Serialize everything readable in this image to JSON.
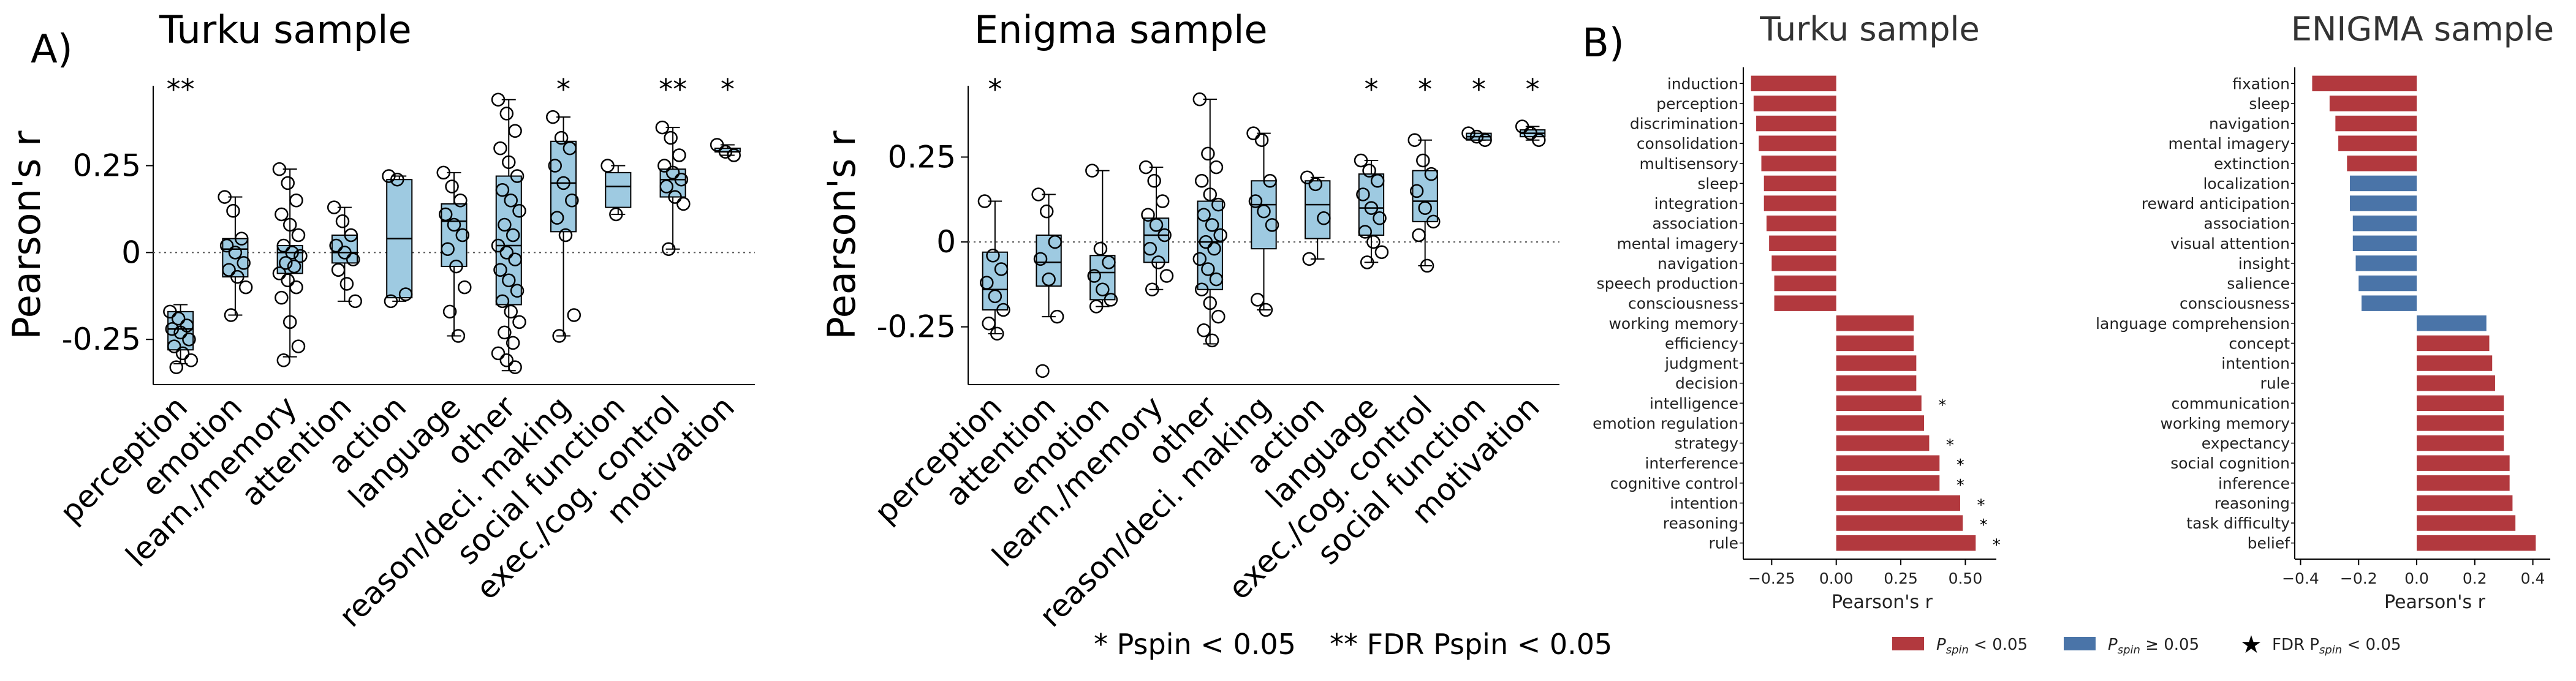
{
  "colors": {
    "box_fill": "#9ecae1",
    "box_edge": "#000000",
    "bar_sig": "#b2393e",
    "bar_nonsig": "#4a74a8"
  },
  "panel_a": {
    "letter": "A)",
    "y_label": "Pearson's r",
    "note_single": "* Pspin < 0.05",
    "note_double": "** FDR Pspin < 0.05"
  },
  "panel_b": {
    "letter": "B)",
    "x_label": "Pearson's r",
    "legend": {
      "sig": "P",
      "sig_sub": "spin",
      "sig_tail": " < 0.05",
      "nonsig": "P",
      "nonsig_sub": "spin",
      "nonsig_tail": " ≥ 0.05",
      "fdr": "FDR P",
      "fdr_sub": "spin",
      "fdr_tail": " < 0.05"
    }
  },
  "chart_data": [
    {
      "type": "box",
      "title": "Turku sample",
      "ylabel": "Pearson's r",
      "ylim": [
        -0.38,
        0.48
      ],
      "yticks": [
        -0.25,
        0,
        0.25
      ],
      "ytick_labels": [
        "-0.25",
        "0",
        "0.25"
      ],
      "reference_line": 0,
      "categories": [
        "perception",
        "emotion",
        "learn./memory",
        "attention",
        "action",
        "language",
        "other",
        "reason/deci. making",
        "social function",
        "exec./cog. control",
        "motivation"
      ],
      "significance": [
        "**",
        "",
        "",
        "",
        "",
        "",
        "",
        "*",
        "",
        "**",
        "*"
      ],
      "boxes": [
        {
          "q1": -0.28,
          "median": -0.22,
          "q3": -0.17,
          "whisker_low": -0.32,
          "whisker_high": -0.15,
          "points": [
            -0.17,
            -0.19,
            -0.21,
            -0.22,
            -0.23,
            -0.25,
            -0.27,
            -0.29,
            -0.31,
            -0.33
          ]
        },
        {
          "q1": -0.07,
          "median": 0.01,
          "q3": 0.04,
          "whisker_low": -0.18,
          "whisker_high": 0.16,
          "points": [
            0.16,
            0.12,
            0.04,
            0.02,
            0.0,
            -0.03,
            -0.05,
            -0.07,
            -0.1,
            -0.18
          ]
        },
        {
          "q1": -0.06,
          "median": 0.0,
          "q3": 0.02,
          "whisker_low": -0.3,
          "whisker_high": 0.24,
          "points": [
            0.24,
            0.2,
            0.15,
            0.11,
            0.08,
            0.05,
            0.02,
            0.0,
            -0.01,
            -0.03,
            -0.04,
            -0.06,
            -0.08,
            -0.1,
            -0.13,
            -0.2,
            -0.27,
            -0.31
          ]
        },
        {
          "q1": -0.03,
          "median": 0.0,
          "q3": 0.05,
          "whisker_low": -0.14,
          "whisker_high": 0.13,
          "points": [
            0.13,
            0.09,
            0.05,
            0.02,
            0.0,
            -0.02,
            -0.05,
            -0.09,
            -0.14
          ]
        },
        {
          "q1": -0.13,
          "median": 0.04,
          "q3": 0.21,
          "whisker_low": -0.14,
          "whisker_high": 0.22,
          "points": [
            0.22,
            0.21,
            -0.12,
            -0.14
          ]
        },
        {
          "q1": -0.04,
          "median": 0.09,
          "q3": 0.14,
          "whisker_low": -0.24,
          "whisker_high": 0.23,
          "points": [
            0.23,
            0.19,
            0.15,
            0.11,
            0.08,
            0.05,
            0.01,
            -0.04,
            -0.1,
            -0.17,
            -0.24
          ]
        },
        {
          "q1": -0.15,
          "median": 0.02,
          "q3": 0.22,
          "whisker_low": -0.34,
          "whisker_high": 0.44,
          "points": [
            0.44,
            0.4,
            0.35,
            0.3,
            0.26,
            0.22,
            0.18,
            0.15,
            0.12,
            0.08,
            0.05,
            0.02,
            0.0,
            -0.02,
            -0.05,
            -0.08,
            -0.11,
            -0.14,
            -0.17,
            -0.2,
            -0.23,
            -0.26,
            -0.29,
            -0.31,
            -0.33
          ]
        },
        {
          "q1": 0.06,
          "median": 0.2,
          "q3": 0.32,
          "whisker_low": -0.24,
          "whisker_high": 0.39,
          "points": [
            0.39,
            0.33,
            0.3,
            0.25,
            0.2,
            0.15,
            0.1,
            0.05,
            -0.18,
            -0.24
          ]
        },
        {
          "q1": 0.13,
          "median": 0.19,
          "q3": 0.23,
          "whisker_low": 0.11,
          "whisker_high": 0.25,
          "points": [
            0.25,
            0.11
          ]
        },
        {
          "q1": 0.16,
          "median": 0.21,
          "q3": 0.24,
          "whisker_low": 0.01,
          "whisker_high": 0.36,
          "points": [
            0.36,
            0.33,
            0.28,
            0.25,
            0.23,
            0.21,
            0.19,
            0.16,
            0.14,
            0.01
          ]
        },
        {
          "q1": 0.29,
          "median": 0.29,
          "q3": 0.3,
          "whisker_low": 0.28,
          "whisker_high": 0.31,
          "points": [
            0.31,
            0.29,
            0.28
          ]
        }
      ]
    },
    {
      "type": "box",
      "title": "Enigma sample",
      "ylabel": "Pearson's r",
      "ylim": [
        -0.42,
        0.46
      ],
      "yticks": [
        -0.25,
        0,
        0.25
      ],
      "ytick_labels": [
        "-0.25",
        "0",
        "0.25"
      ],
      "reference_line": 0,
      "categories": [
        "perception",
        "attention",
        "emotion",
        "learn./memory",
        "other",
        "reason/deci. making",
        "action",
        "language",
        "exec./cog. control",
        "social function",
        "motivation"
      ],
      "significance": [
        "*",
        "",
        "",
        "",
        "",
        "",
        "",
        "*",
        "*",
        "*",
        "*"
      ],
      "boxes": [
        {
          "q1": -0.2,
          "median": -0.14,
          "q3": -0.03,
          "whisker_low": -0.27,
          "whisker_high": 0.12,
          "points": [
            0.12,
            -0.04,
            -0.08,
            -0.12,
            -0.16,
            -0.2,
            -0.24,
            -0.27
          ]
        },
        {
          "q1": -0.13,
          "median": -0.06,
          "q3": 0.02,
          "whisker_low": -0.22,
          "whisker_high": 0.14,
          "points": [
            0.14,
            0.09,
            0.0,
            -0.05,
            -0.11,
            -0.22,
            -0.38
          ]
        },
        {
          "q1": -0.17,
          "median": -0.09,
          "q3": -0.04,
          "whisker_low": -0.19,
          "whisker_high": 0.21,
          "points": [
            0.21,
            -0.02,
            -0.06,
            -0.1,
            -0.14,
            -0.17,
            -0.19
          ]
        },
        {
          "q1": -0.06,
          "median": 0.02,
          "q3": 0.07,
          "whisker_low": -0.14,
          "whisker_high": 0.22,
          "points": [
            0.22,
            0.18,
            0.12,
            0.08,
            0.05,
            0.02,
            -0.02,
            -0.06,
            -0.1,
            -0.14
          ]
        },
        {
          "q1": -0.14,
          "median": 0.0,
          "q3": 0.12,
          "whisker_low": -0.3,
          "whisker_high": 0.42,
          "points": [
            0.42,
            0.26,
            0.22,
            0.18,
            0.14,
            0.11,
            0.08,
            0.05,
            0.02,
            0.0,
            -0.02,
            -0.05,
            -0.08,
            -0.11,
            -0.14,
            -0.18,
            -0.22,
            -0.26,
            -0.29
          ]
        },
        {
          "q1": -0.02,
          "median": 0.11,
          "q3": 0.18,
          "whisker_low": -0.2,
          "whisker_high": 0.32,
          "points": [
            0.32,
            0.3,
            0.18,
            0.12,
            0.09,
            0.05,
            -0.17,
            -0.2
          ]
        },
        {
          "q1": 0.01,
          "median": 0.11,
          "q3": 0.18,
          "whisker_low": -0.05,
          "whisker_high": 0.19,
          "points": [
            0.19,
            0.17,
            0.07,
            -0.05
          ]
        },
        {
          "q1": 0.02,
          "median": 0.1,
          "q3": 0.2,
          "whisker_low": -0.06,
          "whisker_high": 0.24,
          "points": [
            0.24,
            0.21,
            0.18,
            0.14,
            0.1,
            0.07,
            0.03,
            0.0,
            -0.03,
            -0.06
          ]
        },
        {
          "q1": 0.06,
          "median": 0.12,
          "q3": 0.21,
          "whisker_low": -0.07,
          "whisker_high": 0.3,
          "points": [
            0.3,
            0.24,
            0.2,
            0.15,
            0.1,
            0.06,
            0.02,
            -0.07
          ]
        },
        {
          "q1": 0.3,
          "median": 0.31,
          "q3": 0.32,
          "whisker_low": 0.3,
          "whisker_high": 0.32,
          "points": [
            0.32,
            0.31,
            0.3
          ]
        },
        {
          "q1": 0.31,
          "median": 0.32,
          "q3": 0.33,
          "whisker_low": 0.3,
          "whisker_high": 0.34,
          "points": [
            0.34,
            0.32,
            0.3
          ]
        }
      ]
    },
    {
      "type": "bar",
      "orientation": "horizontal",
      "title": "Turku sample",
      "xlabel": "Pearson's r",
      "xlim": [
        -0.36,
        0.62
      ],
      "xticks": [
        -0.25,
        0,
        0.25,
        0.5
      ],
      "xtick_labels": [
        "−0.25",
        "0.00",
        "0.25",
        "0.50"
      ],
      "categories": [
        "induction",
        "perception",
        "discrimination",
        "consolidation",
        "multisensory",
        "sleep",
        "integration",
        "association",
        "mental imagery",
        "navigation",
        "speech production",
        "consciousness",
        "working memory",
        "efficiency",
        "judgment",
        "decision",
        "intelligence",
        "emotion regulation",
        "strategy",
        "interference",
        "cognitive control",
        "intention",
        "reasoning",
        "rule"
      ],
      "values": [
        -0.33,
        -0.32,
        -0.31,
        -0.3,
        -0.29,
        -0.28,
        -0.28,
        -0.27,
        -0.26,
        -0.25,
        -0.24,
        -0.24,
        0.3,
        0.3,
        0.31,
        0.31,
        0.33,
        0.34,
        0.36,
        0.4,
        0.4,
        0.48,
        0.49,
        0.54
      ],
      "significant": [
        true,
        true,
        true,
        true,
        true,
        true,
        true,
        true,
        true,
        true,
        true,
        true,
        true,
        true,
        true,
        true,
        true,
        true,
        true,
        true,
        true,
        true,
        true,
        true
      ],
      "fdr": [
        false,
        false,
        false,
        false,
        false,
        false,
        false,
        false,
        false,
        false,
        false,
        false,
        false,
        false,
        false,
        false,
        true,
        false,
        true,
        true,
        true,
        true,
        true,
        true
      ]
    },
    {
      "type": "bar",
      "orientation": "horizontal",
      "title": "ENIGMA sample",
      "xlabel": "Pearson's r",
      "xlim": [
        -0.42,
        0.46
      ],
      "xticks": [
        -0.4,
        -0.2,
        0,
        0.2,
        0.4
      ],
      "xtick_labels": [
        "−0.4",
        "−0.2",
        "0.0",
        "0.2",
        "0.4"
      ],
      "categories": [
        "fixation",
        "sleep",
        "navigation",
        "mental imagery",
        "extinction",
        "localization",
        "reward anticipation",
        "association",
        "visual attention",
        "insight",
        "salience",
        "consciousness",
        "language comprehension",
        "concept",
        "intention",
        "rule",
        "communication",
        "working memory",
        "expectancy",
        "social cognition",
        "inference",
        "reasoning",
        "task difficulty",
        "belief"
      ],
      "values": [
        -0.36,
        -0.3,
        -0.28,
        -0.27,
        -0.24,
        -0.23,
        -0.23,
        -0.22,
        -0.22,
        -0.21,
        -0.2,
        -0.19,
        0.24,
        0.25,
        0.26,
        0.27,
        0.3,
        0.3,
        0.3,
        0.32,
        0.32,
        0.33,
        0.34,
        0.41
      ],
      "significant": [
        true,
        true,
        true,
        true,
        true,
        false,
        false,
        false,
        false,
        false,
        false,
        false,
        false,
        true,
        true,
        true,
        true,
        true,
        true,
        true,
        true,
        true,
        true,
        true
      ],
      "fdr": [
        false,
        false,
        false,
        false,
        false,
        false,
        false,
        false,
        false,
        false,
        false,
        false,
        false,
        false,
        false,
        false,
        false,
        false,
        false,
        false,
        false,
        false,
        false,
        false
      ]
    }
  ]
}
